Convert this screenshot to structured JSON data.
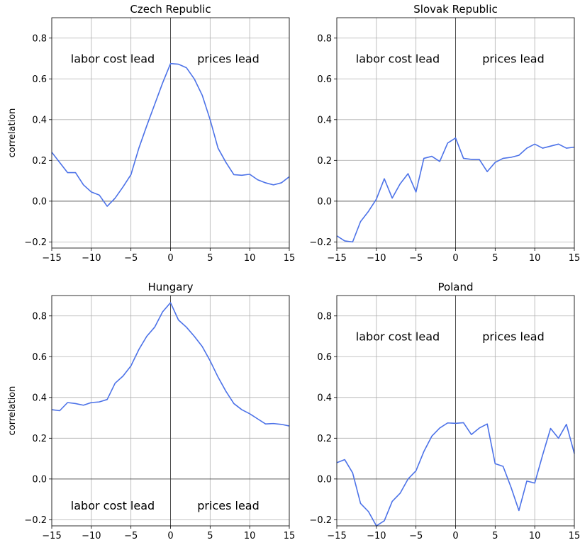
{
  "chart_data": [
    {
      "type": "line",
      "title": "Czech Republic",
      "ylabel": "correlation",
      "xlim": [
        -15,
        15
      ],
      "ylim": [
        -0.23,
        0.9
      ],
      "grid": true,
      "xticks": [
        "−15",
        "−10",
        "−5",
        "0",
        "5",
        "10",
        "15"
      ],
      "yticks": [
        "−0.2",
        "0.0",
        "0.2",
        "0.4",
        "0.6",
        "0.8"
      ],
      "annotations": [
        {
          "text": "labor cost lead",
          "x": -7.3,
          "y": 0.7
        },
        {
          "text": "prices lead",
          "x": 7.3,
          "y": 0.7
        }
      ],
      "x": [
        -15,
        -14,
        -13,
        -12,
        -11,
        -10,
        -9,
        -8,
        -7,
        -6,
        -5,
        -4,
        -3,
        -2,
        -1,
        0,
        1,
        2,
        3,
        4,
        5,
        6,
        7,
        8,
        9,
        10,
        11,
        12,
        13,
        14,
        15
      ],
      "series": [
        {
          "values": [
            0.24,
            0.19,
            0.14,
            0.14,
            0.08,
            0.045,
            0.03,
            -0.025,
            0.015,
            0.07,
            0.13,
            0.26,
            0.37,
            0.475,
            0.58,
            0.675,
            0.672,
            0.655,
            0.6,
            0.52,
            0.4,
            0.26,
            0.19,
            0.13,
            0.127,
            0.132,
            0.105,
            0.09,
            0.08,
            0.09,
            0.12
          ]
        }
      ]
    },
    {
      "type": "line",
      "title": "Slovak Republic",
      "ylabel": "",
      "xlim": [
        -15,
        15
      ],
      "ylim": [
        -0.23,
        0.9
      ],
      "grid": true,
      "xticks": [
        "−15",
        "−10",
        "−5",
        "0",
        "5",
        "10",
        "15"
      ],
      "yticks": [
        "−0.2",
        "0.0",
        "0.2",
        "0.4",
        "0.6",
        "0.8"
      ],
      "annotations": [
        {
          "text": "labor cost lead",
          "x": -7.3,
          "y": 0.7
        },
        {
          "text": "prices lead",
          "x": 7.3,
          "y": 0.7
        }
      ],
      "x": [
        -15,
        -14,
        -13,
        -12,
        -11,
        -10,
        -9,
        -8,
        -7,
        -6,
        -5,
        -4,
        -3,
        -2,
        -1,
        0,
        1,
        2,
        3,
        4,
        5,
        6,
        7,
        8,
        9,
        10,
        11,
        12,
        13,
        14,
        15
      ],
      "series": [
        {
          "values": [
            -0.17,
            -0.195,
            -0.2,
            -0.1,
            -0.05,
            0.01,
            0.11,
            0.015,
            0.085,
            0.135,
            0.045,
            0.21,
            0.22,
            0.195,
            0.285,
            0.31,
            0.21,
            0.205,
            0.205,
            0.145,
            0.19,
            0.21,
            0.215,
            0.225,
            0.26,
            0.28,
            0.26,
            0.27,
            0.28,
            0.26,
            0.265
          ]
        }
      ]
    },
    {
      "type": "line",
      "title": "Hungary",
      "ylabel": "correlation",
      "xlim": [
        -15,
        15
      ],
      "ylim": [
        -0.23,
        0.9
      ],
      "grid": true,
      "xticks": [
        "−15",
        "−10",
        "−5",
        "0",
        "5",
        "10",
        "15"
      ],
      "yticks": [
        "−0.2",
        "0.0",
        "0.2",
        "0.4",
        "0.6",
        "0.8"
      ],
      "annotations": [
        {
          "text": "labor cost lead",
          "x": -7.3,
          "y": -0.13
        },
        {
          "text": "prices lead",
          "x": 7.3,
          "y": -0.13
        }
      ],
      "x": [
        -15,
        -14,
        -13,
        -12,
        -11,
        -10,
        -9,
        -8,
        -7,
        -6,
        -5,
        -4,
        -3,
        -2,
        -1,
        0,
        1,
        2,
        3,
        4,
        5,
        6,
        7,
        8,
        9,
        10,
        11,
        12,
        13,
        14,
        15
      ],
      "series": [
        {
          "values": [
            0.34,
            0.335,
            0.375,
            0.37,
            0.362,
            0.375,
            0.378,
            0.39,
            0.47,
            0.505,
            0.555,
            0.635,
            0.7,
            0.745,
            0.82,
            0.865,
            0.78,
            0.745,
            0.7,
            0.65,
            0.58,
            0.5,
            0.43,
            0.37,
            0.34,
            0.32,
            0.295,
            0.27,
            0.272,
            0.268,
            0.26
          ]
        }
      ]
    },
    {
      "type": "line",
      "title": "Poland",
      "ylabel": "",
      "xlim": [
        -15,
        15
      ],
      "ylim": [
        -0.23,
        0.9
      ],
      "grid": true,
      "xticks": [
        "−15",
        "−10",
        "−5",
        "0",
        "5",
        "10",
        "15"
      ],
      "yticks": [
        "−0.2",
        "0.0",
        "0.2",
        "0.4",
        "0.6",
        "0.8"
      ],
      "annotations": [
        {
          "text": "labor cost lead",
          "x": -7.3,
          "y": 0.7
        },
        {
          "text": "prices lead",
          "x": 7.3,
          "y": 0.7
        }
      ],
      "x": [
        -15,
        -14,
        -13,
        -12,
        -11,
        -10,
        -9,
        -8,
        -7,
        -6,
        -5,
        -4,
        -3,
        -2,
        -1,
        0,
        1,
        2,
        3,
        4,
        5,
        6,
        7,
        8,
        9,
        10,
        11,
        12,
        13,
        14,
        15
      ],
      "series": [
        {
          "values": [
            0.08,
            0.095,
            0.03,
            -0.12,
            -0.16,
            -0.23,
            -0.205,
            -0.11,
            -0.07,
            0.0,
            0.04,
            0.135,
            0.21,
            0.25,
            0.275,
            0.273,
            0.276,
            0.218,
            0.25,
            0.27,
            0.075,
            0.062,
            -0.04,
            -0.155,
            -0.01,
            -0.02,
            0.118,
            0.248,
            0.2,
            0.268,
            0.125
          ]
        }
      ]
    }
  ],
  "colors": {
    "line": "#4c72e8",
    "grid": "#b0b0b0",
    "zero": "#333333"
  }
}
